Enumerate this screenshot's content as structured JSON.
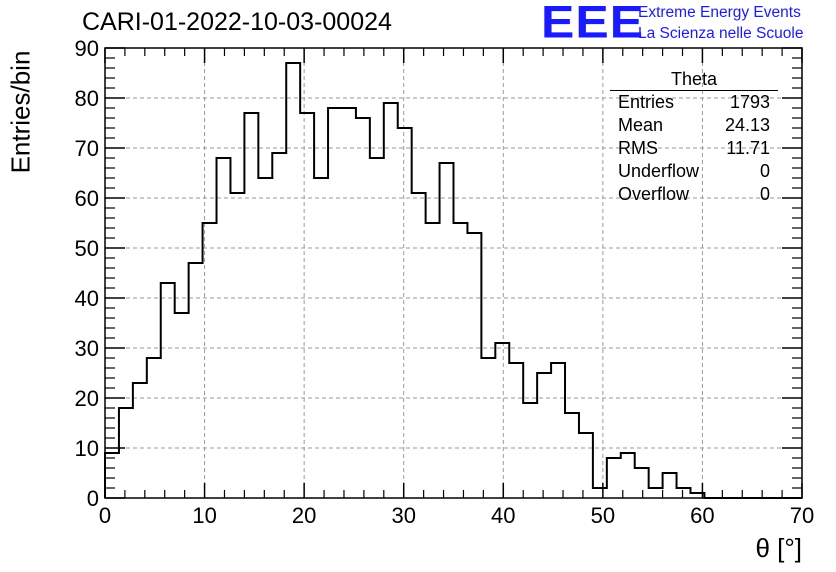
{
  "title": "CARI-01-2022-10-03-00024",
  "brand": {
    "logo": "EEE",
    "line1": "Extreme Energy Events",
    "line2": "La Scienza nelle Scuole",
    "color": "#1a1aff"
  },
  "stats": {
    "name": "Theta",
    "rows": [
      {
        "label": "Entries",
        "value": "1793"
      },
      {
        "label": "Mean",
        "value": "24.13"
      },
      {
        "label": "RMS",
        "value": "11.71"
      },
      {
        "label": "Underflow",
        "value": "0"
      },
      {
        "label": "Overflow",
        "value": "0"
      }
    ]
  },
  "chart_data": {
    "type": "bar",
    "title": "CARI-01-2022-10-03-00024",
    "xlabel": "θ [°]",
    "ylabel": "Entries/bin",
    "xlim": [
      0,
      70
    ],
    "ylim": [
      0,
      90
    ],
    "grid": true,
    "legend": "top-right",
    "bin_width": 1.4,
    "x_ticks": [
      0,
      10,
      20,
      30,
      40,
      50,
      60,
      70
    ],
    "y_ticks": [
      0,
      10,
      20,
      30,
      40,
      50,
      60,
      70,
      80,
      90
    ],
    "values": [
      9,
      18,
      23,
      28,
      43,
      37,
      47,
      55,
      68,
      61,
      77,
      64,
      69,
      87,
      77,
      64,
      78,
      78,
      76,
      68,
      79,
      74,
      61,
      55,
      67,
      55,
      53,
      28,
      31,
      27,
      19,
      25,
      27,
      17,
      13,
      2,
      8,
      9,
      6,
      2,
      5,
      2,
      1,
      0,
      0,
      0,
      0,
      0,
      0,
      0
    ]
  }
}
